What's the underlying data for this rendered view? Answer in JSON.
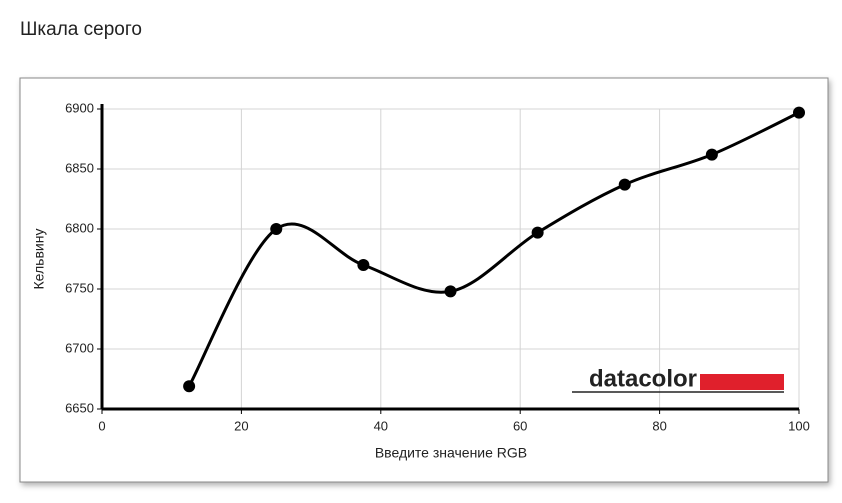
{
  "chart_data": {
    "type": "line",
    "page_title": "Шкала серого",
    "xlabel": "Введите значение RGB",
    "ylabel": "Кельвину",
    "logo": "datacolor",
    "x": [
      12.5,
      25,
      37.5,
      50,
      62.5,
      75,
      87.5,
      100
    ],
    "series": [
      {
        "color": "#000000",
        "values": [
          6669,
          6800,
          6770,
          6748,
          6797,
          6837,
          6862,
          6897
        ]
      }
    ],
    "xlim": [
      0,
      100
    ],
    "xticks": [
      0,
      20,
      40,
      60,
      80,
      100
    ],
    "ylim": [
      6650,
      6900
    ],
    "yticks": [
      6650,
      6700,
      6750,
      6800,
      6850,
      6900
    ],
    "grid": true,
    "smooth": true
  }
}
